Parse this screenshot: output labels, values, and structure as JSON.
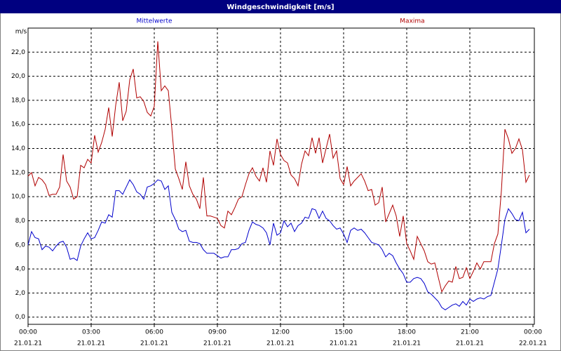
{
  "chart_data": {
    "type": "line",
    "title": "Windgeschwindigkeit [m/s]",
    "ylabel": "m/s",
    "xlim": [
      0,
      1440
    ],
    "xticks": [
      {
        "value": 0,
        "label": "00:00"
      },
      {
        "value": 180,
        "label": "03:00"
      },
      {
        "value": 360,
        "label": "06:00"
      },
      {
        "value": 540,
        "label": "09:00"
      },
      {
        "value": 720,
        "label": "12:00"
      },
      {
        "value": 900,
        "label": "15:00"
      },
      {
        "value": 1080,
        "label": "18:00"
      },
      {
        "value": 1260,
        "label": "21:00"
      },
      {
        "value": 1440,
        "label": "00:00"
      }
    ],
    "xtick_dates": [
      "21.01.21",
      "21.01.21",
      "21.01.21",
      "21.01.21",
      "21.01.21",
      "21.01.21",
      "21.01.21",
      "21.01.21",
      "22.01.21"
    ],
    "ylim": [
      -0.6,
      24.0
    ],
    "yticks": [
      {
        "value": 0,
        "label": "0,0"
      },
      {
        "value": 2,
        "label": "2,0"
      },
      {
        "value": 4,
        "label": "4,0"
      },
      {
        "value": 6,
        "label": "6,0"
      },
      {
        "value": 8,
        "label": "8,0"
      },
      {
        "value": 10,
        "label": "10,0"
      },
      {
        "value": 12,
        "label": "12,0"
      },
      {
        "value": 14,
        "label": "14,0"
      },
      {
        "value": 16,
        "label": "16,0"
      },
      {
        "value": 18,
        "label": "18,0"
      },
      {
        "value": 20,
        "label": "20,0"
      },
      {
        "value": 22,
        "label": "22,0"
      }
    ],
    "grid": true,
    "x": [
      0,
      10,
      20,
      30,
      40,
      50,
      60,
      70,
      80,
      90,
      100,
      110,
      120,
      130,
      140,
      150,
      160,
      170,
      180,
      190,
      200,
      210,
      220,
      230,
      240,
      250,
      260,
      270,
      280,
      290,
      300,
      310,
      320,
      330,
      340,
      350,
      360,
      370,
      380,
      390,
      400,
      410,
      420,
      430,
      440,
      450,
      460,
      470,
      480,
      490,
      500,
      510,
      520,
      530,
      540,
      550,
      560,
      570,
      580,
      590,
      600,
      610,
      620,
      630,
      640,
      650,
      660,
      670,
      680,
      690,
      700,
      710,
      720,
      730,
      740,
      750,
      760,
      770,
      780,
      790,
      800,
      810,
      820,
      830,
      840,
      850,
      860,
      870,
      880,
      890,
      900,
      910,
      920,
      930,
      940,
      950,
      960,
      970,
      980,
      990,
      1000,
      1010,
      1020,
      1030,
      1040,
      1050,
      1060,
      1070,
      1080,
      1090,
      1100,
      1110,
      1120,
      1130,
      1140,
      1150,
      1160,
      1170,
      1180,
      1190,
      1200,
      1210,
      1220,
      1230,
      1240,
      1250,
      1260,
      1270,
      1280,
      1290,
      1300,
      1310,
      1320,
      1330,
      1340,
      1350,
      1360,
      1370,
      1380,
      1390,
      1400,
      1410,
      1420,
      1430
    ],
    "series": [
      {
        "name": "Mittelwerte",
        "color": "#0000cc",
        "values": [
          6.0,
          7.1,
          6.6,
          6.5,
          5.6,
          5.9,
          5.8,
          5.5,
          5.9,
          6.2,
          6.3,
          5.8,
          4.8,
          4.9,
          4.7,
          5.9,
          6.5,
          7.0,
          6.5,
          6.6,
          7.2,
          7.9,
          7.8,
          8.5,
          8.3,
          10.5,
          10.5,
          10.2,
          10.8,
          11.4,
          11.0,
          10.4,
          10.2,
          9.8,
          10.8,
          10.9,
          11.1,
          11.4,
          11.3,
          10.6,
          10.9,
          8.7,
          8.1,
          7.3,
          7.1,
          7.2,
          6.3,
          6.2,
          6.2,
          6.1,
          5.6,
          5.3,
          5.3,
          5.3,
          5.1,
          4.9,
          5.0,
          5.0,
          5.6,
          5.6,
          5.7,
          6.1,
          6.2,
          7.2,
          7.9,
          7.7,
          7.6,
          7.4,
          7.0,
          6.0,
          7.8,
          6.8,
          7.0,
          8.0,
          7.5,
          7.8,
          7.1,
          7.6,
          7.8,
          8.3,
          8.2,
          9.0,
          8.9,
          8.2,
          8.8,
          8.2,
          8.0,
          7.6,
          7.3,
          7.4,
          6.9,
          6.2,
          7.2,
          7.4,
          7.2,
          7.3,
          7.0,
          6.6,
          6.2,
          6.1,
          6.0,
          5.6,
          5.0,
          5.3,
          5.1,
          4.5,
          4.0,
          3.6,
          2.9,
          2.9,
          3.2,
          3.3,
          3.2,
          2.8,
          2.1,
          1.9,
          1.6,
          1.3,
          0.8,
          0.6,
          0.8,
          1.0,
          1.1,
          0.9,
          1.3,
          1.0,
          1.5,
          1.3,
          1.5,
          1.6,
          1.5,
          1.7,
          1.8,
          2.9,
          4.0,
          6.0,
          8.1,
          9.0,
          8.6,
          8.1,
          8.0,
          8.7,
          7.0,
          7.3
        ]
      },
      {
        "name": "Maxima",
        "color": "#b00000",
        "values": [
          11.7,
          12.0,
          10.9,
          11.6,
          11.4,
          11.0,
          10.1,
          10.2,
          10.2,
          10.8,
          13.5,
          11.3,
          10.8,
          9.8,
          10.0,
          12.6,
          12.4,
          13.1,
          12.8,
          15.1,
          13.7,
          14.5,
          15.6,
          17.4,
          15.0,
          17.6,
          19.5,
          16.3,
          17.1,
          19.7,
          20.6,
          18.2,
          18.3,
          17.9,
          17.0,
          16.7,
          17.5,
          22.9,
          18.8,
          19.2,
          18.8,
          15.7,
          12.3,
          11.5,
          10.6,
          12.9,
          10.9,
          10.2,
          9.8,
          9.0,
          11.6,
          8.4,
          8.4,
          8.3,
          8.2,
          7.6,
          7.4,
          8.8,
          8.5,
          9.1,
          9.8,
          10.0,
          11.0,
          11.9,
          12.4,
          11.7,
          11.3,
          12.4,
          11.2,
          13.8,
          12.6,
          14.8,
          13.5,
          13.0,
          12.8,
          11.8,
          11.5,
          10.9,
          12.7,
          13.8,
          13.4,
          14.9,
          13.6,
          14.9,
          12.8,
          14.0,
          15.2,
          13.2,
          13.8,
          11.5,
          11.0,
          12.5,
          10.9,
          11.3,
          11.6,
          11.9,
          11.3,
          10.5,
          10.6,
          9.3,
          9.5,
          10.8,
          7.9,
          8.6,
          9.3,
          8.4,
          6.7,
          8.4,
          6.1,
          5.5,
          4.8,
          6.7,
          6.1,
          5.5,
          4.6,
          4.4,
          4.5,
          3.3,
          2.1,
          2.6,
          3.0,
          2.9,
          4.2,
          3.2,
          3.3,
          4.1,
          3.2,
          3.8,
          4.5,
          4.0,
          4.6,
          4.6,
          4.6,
          6.1,
          6.9,
          10.5,
          15.6,
          14.8,
          13.6,
          14.0,
          14.8,
          13.9,
          11.2,
          11.8
        ]
      }
    ]
  }
}
